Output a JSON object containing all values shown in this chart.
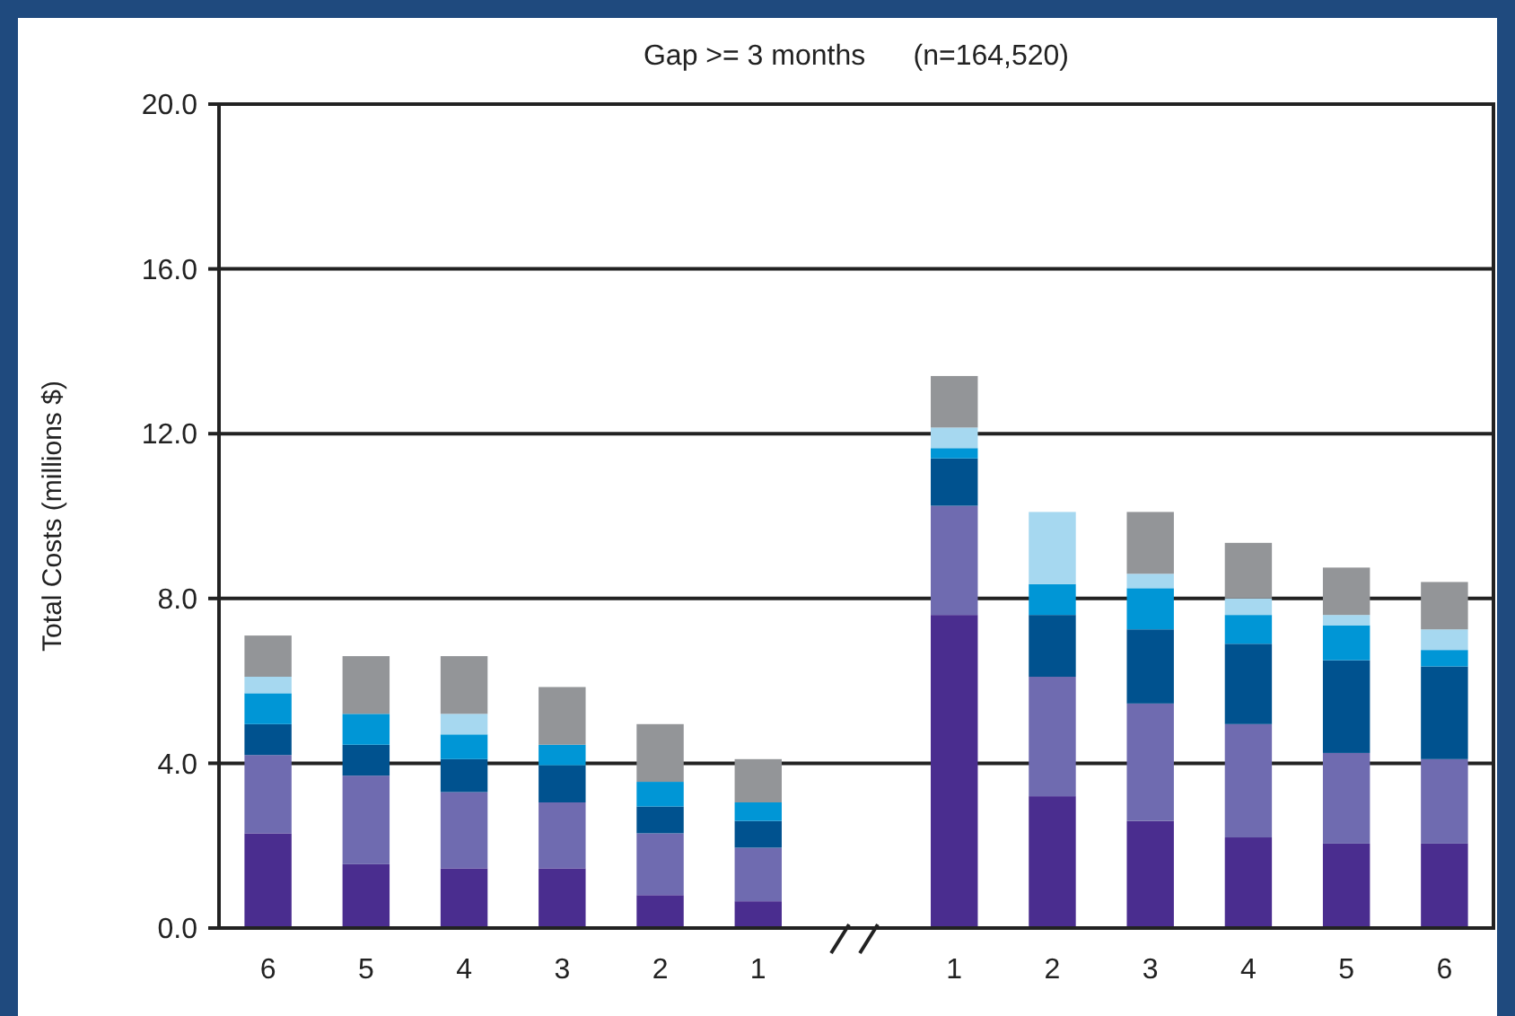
{
  "chart_data": {
    "type": "bar",
    "title": "Gap >= 3 months      (n=164,520)",
    "ylabel": "Total Costs (millions $)",
    "categories": [
      "6",
      "5",
      "4",
      "3",
      "2",
      "1",
      null,
      "1",
      "2",
      "3",
      "4",
      "5",
      "6"
    ],
    "stacked": true,
    "grid": "y",
    "ylim": [
      0,
      20
    ],
    "yticks": [
      {
        "value": 0,
        "label": "0.0"
      },
      {
        "value": 4,
        "label": "4.0"
      },
      {
        "value": 8,
        "label": "8.0"
      },
      {
        "value": 12,
        "label": "12.0"
      },
      {
        "value": 16,
        "label": "16.0"
      },
      {
        "value": 20,
        "label": "20.0"
      }
    ],
    "series": [
      {
        "color": "#4a2d8f",
        "values": [
          2.3,
          1.55,
          1.45,
          1.45,
          0.8,
          0.65,
          null,
          7.6,
          3.2,
          2.6,
          2.2,
          2.05,
          2.05
        ]
      },
      {
        "color": "#6f6bb0",
        "values": [
          1.9,
          2.15,
          1.85,
          1.6,
          1.5,
          1.3,
          null,
          2.65,
          2.9,
          2.85,
          2.75,
          2.2,
          2.05
        ]
      },
      {
        "color": "#00528f",
        "values": [
          0.75,
          0.75,
          0.8,
          0.9,
          0.65,
          0.65,
          null,
          1.15,
          1.5,
          1.8,
          1.95,
          2.25,
          2.25
        ]
      },
      {
        "color": "#0096d6",
        "values": [
          0.75,
          0.75,
          0.6,
          0.5,
          0.6,
          0.45,
          null,
          0.25,
          0.75,
          1.0,
          0.7,
          0.85,
          0.4
        ]
      },
      {
        "color": "#a6d8f0",
        "values": [
          0.4,
          0,
          0.5,
          0,
          0,
          0,
          null,
          0.5,
          1.75,
          0.35,
          0.4,
          0.25,
          0.5
        ]
      },
      {
        "color": "#939598",
        "values": [
          1.0,
          1.4,
          1.4,
          1.4,
          1.4,
          1.05,
          null,
          1.25,
          0,
          1.5,
          1.35,
          1.15,
          1.15
        ]
      }
    ]
  }
}
